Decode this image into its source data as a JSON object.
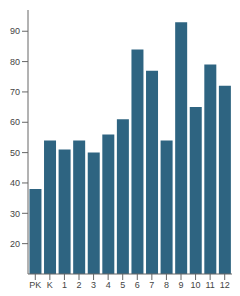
{
  "chart_data": {
    "type": "bar",
    "categories": [
      "PK",
      "K",
      "1",
      "2",
      "3",
      "4",
      "5",
      "6",
      "7",
      "8",
      "9",
      "10",
      "11",
      "12"
    ],
    "values": [
      38,
      54,
      51,
      54,
      50,
      56,
      61,
      84,
      77,
      54,
      93,
      65,
      79,
      72
    ],
    "color": "#2e6481",
    "ylim": [
      10,
      97
    ],
    "yticks": [
      20,
      30,
      40,
      50,
      60,
      70,
      80,
      90
    ],
    "grid": false
  }
}
